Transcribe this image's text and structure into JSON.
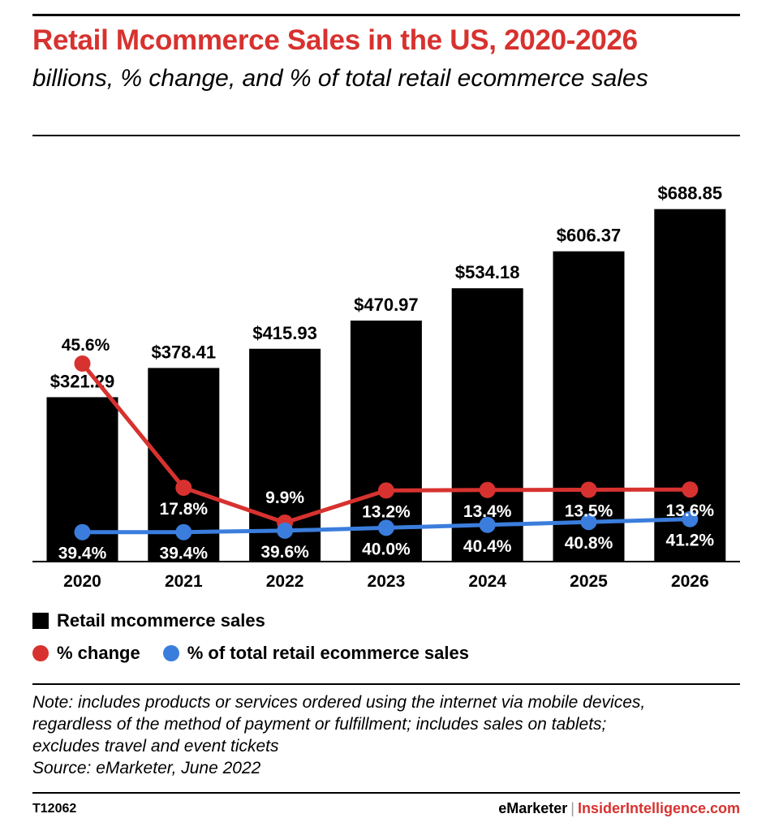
{
  "title": "Retail Mcommerce Sales in the US, 2020-2026",
  "subtitle": "billions, % change, and % of total retail ecommerce sales",
  "chart_data": {
    "type": "bar",
    "categories": [
      "2020",
      "2021",
      "2022",
      "2023",
      "2024",
      "2025",
      "2026"
    ],
    "bar_series": {
      "name": "Retail mcommerce sales",
      "values": [
        321.29,
        378.41,
        415.93,
        470.97,
        534.18,
        606.37,
        688.85
      ],
      "labels": [
        "$321.29",
        "$378.41",
        "$415.93",
        "$470.97",
        "$534.18",
        "$606.37",
        "$688.85"
      ],
      "color": "#000000"
    },
    "line_series": [
      {
        "name": "% change",
        "values": [
          45.6,
          17.8,
          9.9,
          13.2,
          13.4,
          13.5,
          13.6
        ],
        "labels": [
          "45.6%",
          "17.8%",
          "9.9%",
          "13.2%",
          "13.4%",
          "13.5%",
          "13.6%"
        ],
        "color": "#d7322f"
      },
      {
        "name": "% of total retail ecommerce sales",
        "values": [
          39.4,
          39.4,
          39.6,
          40.0,
          40.4,
          40.8,
          41.2
        ],
        "labels": [
          "39.4%",
          "39.4%",
          "39.6%",
          "40.0%",
          "40.4%",
          "40.8%",
          "41.2%"
        ],
        "color": "#3b7ddd"
      }
    ],
    "legend_placement": "bottom",
    "grid": false
  },
  "legend": {
    "bars": "Retail mcommerce sales",
    "change": "% change",
    "share": "% of total retail ecommerce sales"
  },
  "note_lines": [
    "Note: includes products or services ordered using the internet via mobile devices,",
    "regardless of the method of payment or fulfillment; includes sales on tablets;",
    "excludes travel and event tickets",
    "Source: eMarketer, June 2022"
  ],
  "footer": {
    "id": "T12062",
    "brand_left": "eMarketer",
    "separator": "|",
    "brand_right": "InsiderIntelligence.com"
  }
}
